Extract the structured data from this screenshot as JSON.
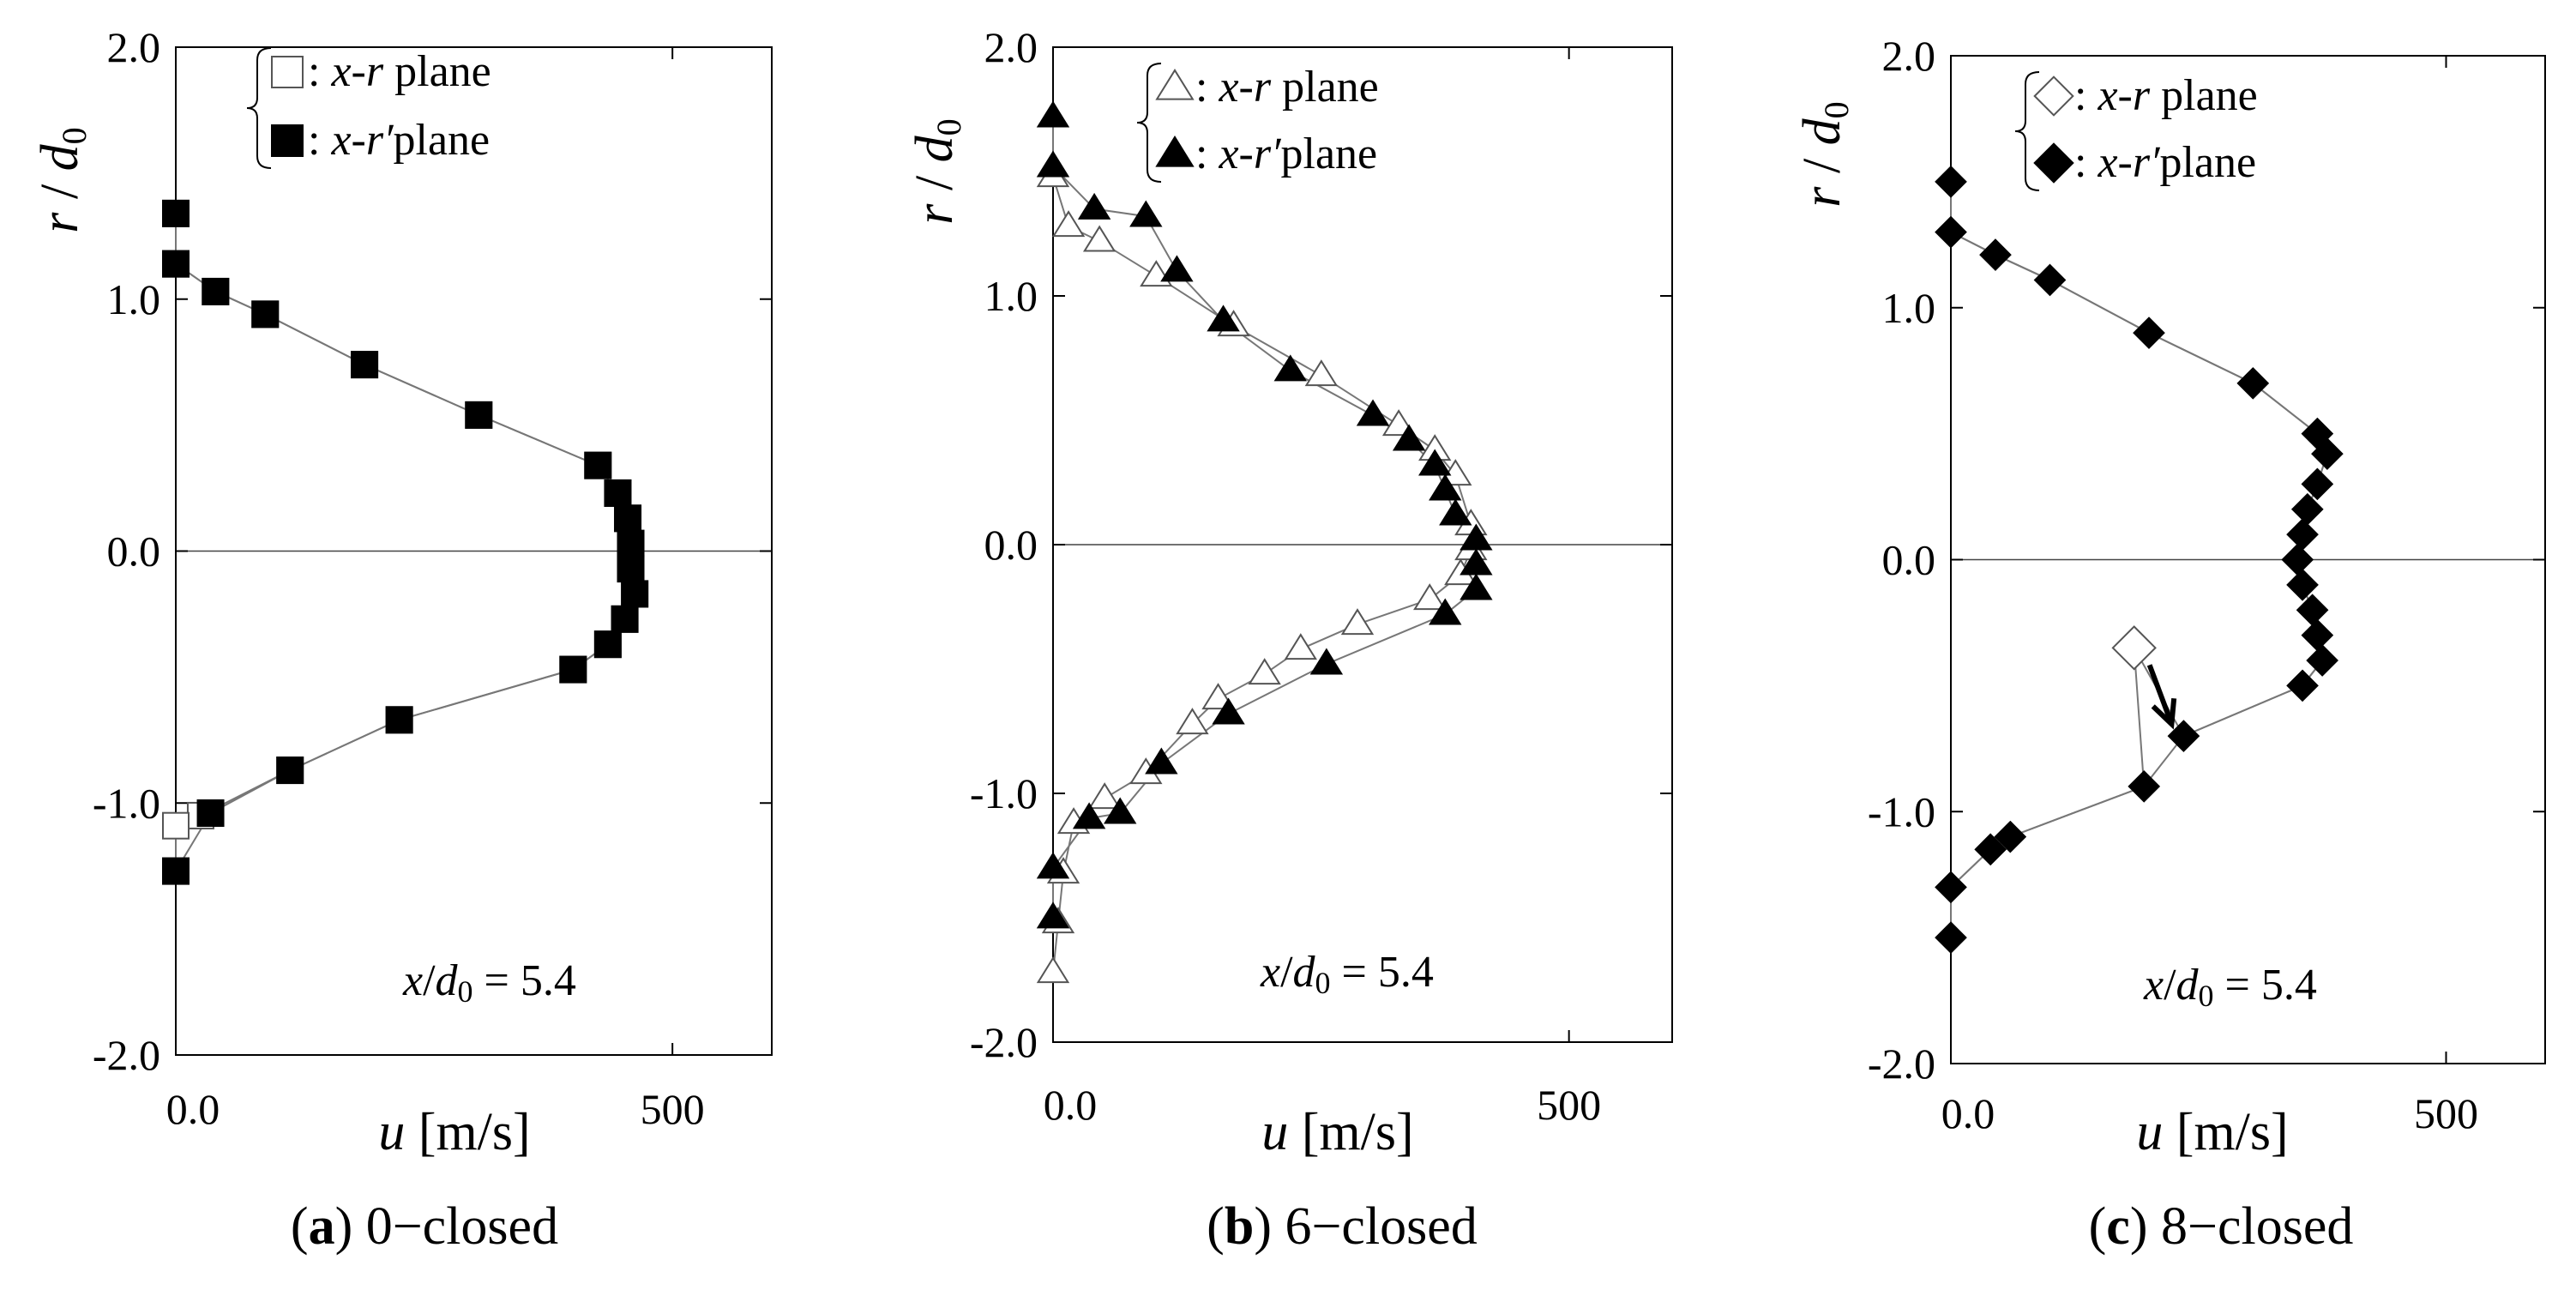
{
  "chart_data": [
    {
      "panel_id": "a",
      "caption_label": "a",
      "caption_text": " 0−closed",
      "type": "line",
      "xlabel_italic": "u",
      "xlabel_units": " [m/s]",
      "ylabel_r": "r",
      "ylabel_sep": " / ",
      "ylabel_d": "d",
      "ylabel_sub": "0",
      "xlim": [
        0,
        600
      ],
      "ylim": [
        -2,
        2
      ],
      "x_tick_labels": [
        {
          "value": 0,
          "label": "0.0"
        },
        {
          "value": 500,
          "label": "500"
        }
      ],
      "y_tick_labels": [
        {
          "value": 2,
          "label": "2.0"
        },
        {
          "value": 1,
          "label": "1.0"
        },
        {
          "value": 0,
          "label": "0.0"
        },
        {
          "value": -1,
          "label": "-1.0"
        },
        {
          "value": -2,
          "label": "-2.0"
        }
      ],
      "annotation": {
        "x": "x",
        "slash": "/",
        "d": "d",
        "sub": "0",
        "rest": " = 5.4"
      },
      "marker": "square",
      "legend": [
        {
          "prefix": ": ",
          "a": "x",
          "mid": "-",
          "b": "r",
          "suffix": " plane",
          "fill": "open"
        },
        {
          "prefix": ": ",
          "a": "x",
          "mid": "-",
          "b": "r′",
          "suffix": "plane",
          "fill": "filled"
        }
      ],
      "series": [
        {
          "name": "x-r plane",
          "fill": "open",
          "points": [
            [
              0,
              1.34
            ],
            [
              0,
              1.14
            ],
            [
              40,
              1.03
            ],
            [
              90,
              0.94
            ],
            [
              190,
              0.74
            ],
            [
              305,
              0.54
            ],
            [
              425,
              0.34
            ],
            [
              445,
              0.23
            ],
            [
              455,
              0.13
            ],
            [
              458,
              0.03
            ],
            [
              458,
              -0.07
            ],
            [
              462,
              -0.17
            ],
            [
              452,
              -0.27
            ],
            [
              435,
              -0.37
            ],
            [
              400,
              -0.47
            ],
            [
              225,
              -0.67
            ],
            [
              115,
              -0.87
            ],
            [
              25,
              -1.05
            ],
            [
              0,
              -1.09
            ],
            [
              0,
              -1.27
            ]
          ]
        },
        {
          "name": "x-r′plane",
          "fill": "filled",
          "points": [
            [
              0,
              1.34
            ],
            [
              0,
              1.14
            ],
            [
              40,
              1.03
            ],
            [
              90,
              0.94
            ],
            [
              190,
              0.74
            ],
            [
              305,
              0.54
            ],
            [
              425,
              0.34
            ],
            [
              445,
              0.23
            ],
            [
              455,
              0.13
            ],
            [
              458,
              0.03
            ],
            [
              458,
              -0.07
            ],
            [
              462,
              -0.17
            ],
            [
              452,
              -0.27
            ],
            [
              435,
              -0.37
            ],
            [
              400,
              -0.47
            ],
            [
              225,
              -0.67
            ],
            [
              115,
              -0.87
            ],
            [
              35,
              -1.04
            ],
            [
              0,
              -1.27
            ]
          ]
        }
      ]
    },
    {
      "panel_id": "b",
      "caption_label": "b",
      "caption_text": " 6−closed",
      "type": "line",
      "xlabel_italic": "u",
      "xlabel_units": " [m/s]",
      "ylabel_r": "r",
      "ylabel_sep": " / ",
      "ylabel_d": "d",
      "ylabel_sub": "0",
      "xlim": [
        0,
        600
      ],
      "ylim": [
        -2,
        2
      ],
      "x_tick_labels": [
        {
          "value": 0,
          "label": "0.0"
        },
        {
          "value": 500,
          "label": "500"
        }
      ],
      "y_tick_labels": [
        {
          "value": 2,
          "label": "2.0"
        },
        {
          "value": 1,
          "label": "1.0"
        },
        {
          "value": 0,
          "label": "0.0"
        },
        {
          "value": -1,
          "label": "-1.0"
        },
        {
          "value": -2,
          "label": "-2.0"
        }
      ],
      "annotation": {
        "x": "x",
        "slash": "/",
        "d": "d",
        "sub": "0",
        "rest": " = 5.4"
      },
      "marker": "triangle",
      "legend": [
        {
          "prefix": ": ",
          "a": "x",
          "mid": "-",
          "b": "r",
          "suffix": " plane",
          "fill": "open"
        },
        {
          "prefix": ": ",
          "a": "x",
          "mid": "-",
          "b": "r′",
          "suffix": "plane",
          "fill": "filled"
        }
      ],
      "series": [
        {
          "name": "x-r plane",
          "fill": "open",
          "points": [
            [
              0,
              1.48
            ],
            [
              15,
              1.28
            ],
            [
              45,
              1.22
            ],
            [
              100,
              1.08
            ],
            [
              175,
              0.88
            ],
            [
              260,
              0.68
            ],
            [
              335,
              0.48
            ],
            [
              370,
              0.38
            ],
            [
              390,
              0.28
            ],
            [
              405,
              0.08
            ],
            [
              405,
              -0.02
            ],
            [
              395,
              -0.12
            ],
            [
              365,
              -0.22
            ],
            [
              295,
              -0.32
            ],
            [
              240,
              -0.42
            ],
            [
              205,
              -0.52
            ],
            [
              160,
              -0.62
            ],
            [
              135,
              -0.72
            ],
            [
              90,
              -0.92
            ],
            [
              50,
              -1.02
            ],
            [
              20,
              -1.12
            ],
            [
              10,
              -1.32
            ],
            [
              5,
              -1.52
            ],
            [
              0,
              -1.72
            ]
          ]
        },
        {
          "name": "x-r′plane",
          "fill": "filled",
          "points": [
            [
              0,
              1.72
            ],
            [
              0,
              1.52
            ],
            [
              40,
              1.35
            ],
            [
              90,
              1.32
            ],
            [
              120,
              1.1
            ],
            [
              165,
              0.9
            ],
            [
              230,
              0.7
            ],
            [
              310,
              0.52
            ],
            [
              345,
              0.42
            ],
            [
              370,
              0.32
            ],
            [
              380,
              0.22
            ],
            [
              390,
              0.12
            ],
            [
              410,
              0.02
            ],
            [
              410,
              -0.08
            ],
            [
              410,
              -0.18
            ],
            [
              380,
              -0.28
            ],
            [
              265,
              -0.48
            ],
            [
              170,
              -0.68
            ],
            [
              105,
              -0.88
            ],
            [
              65,
              -1.08
            ],
            [
              35,
              -1.1
            ],
            [
              0,
              -1.3
            ],
            [
              0,
              -1.5
            ]
          ]
        }
      ]
    },
    {
      "panel_id": "c",
      "caption_label": "c",
      "caption_text": " 8−closed",
      "type": "line",
      "xlabel_italic": "u",
      "xlabel_units": " [m/s]",
      "ylabel_r": "r",
      "ylabel_sep": " / ",
      "ylabel_d": "d",
      "ylabel_sub": "0",
      "xlim": [
        0,
        600
      ],
      "ylim": [
        -2,
        2
      ],
      "x_tick_labels": [
        {
          "value": 0,
          "label": "0.0"
        },
        {
          "value": 500,
          "label": "500"
        }
      ],
      "y_tick_labels": [
        {
          "value": 2,
          "label": "2.0"
        },
        {
          "value": 1,
          "label": "1.0"
        },
        {
          "value": 0,
          "label": "0.0"
        },
        {
          "value": -1,
          "label": "-1.0"
        },
        {
          "value": -2,
          "label": "-2.0"
        }
      ],
      "annotation": {
        "x": "x",
        "slash": "/",
        "d": "d",
        "sub": "0",
        "rest": " = 5.4"
      },
      "marker": "diamond",
      "legend": [
        {
          "prefix": ": ",
          "a": "x",
          "mid": "-",
          "b": "r",
          "suffix": " plane",
          "fill": "open"
        },
        {
          "prefix": ": ",
          "a": "x",
          "mid": "-",
          "b": "r′",
          "suffix": "plane",
          "fill": "filled"
        }
      ],
      "series": [
        {
          "name": "x-r plane",
          "fill": "open",
          "points": [
            [
              0,
              1.5
            ],
            [
              0,
              1.3
            ],
            [
              45,
              1.21
            ],
            [
              100,
              1.11
            ],
            [
              200,
              0.9
            ],
            [
              305,
              0.7
            ],
            [
              370,
              0.5
            ],
            [
              380,
              0.42
            ],
            [
              370,
              0.3
            ],
            [
              360,
              0.2
            ],
            [
              355,
              0.1
            ],
            [
              350,
              0.0
            ],
            [
              355,
              -0.1
            ],
            [
              365,
              -0.2
            ],
            [
              370,
              -0.3
            ],
            [
              375,
              -0.4
            ],
            [
              355,
              -0.5
            ],
            [
              235,
              -0.7
            ],
            [
              185,
              -0.35
            ],
            [
              195,
              -0.9
            ],
            [
              60,
              -1.1
            ],
            [
              40,
              -1.15
            ],
            [
              0,
              -1.3
            ],
            [
              0,
              -1.5
            ]
          ],
          "highlight": {
            "point": [
              185,
              -0.35
            ],
            "target": [
              235,
              -0.7
            ]
          }
        },
        {
          "name": "x-r′plane",
          "fill": "filled",
          "points": [
            [
              0,
              1.5
            ],
            [
              0,
              1.3
            ],
            [
              45,
              1.21
            ],
            [
              100,
              1.11
            ],
            [
              200,
              0.9
            ],
            [
              305,
              0.7
            ],
            [
              370,
              0.5
            ],
            [
              380,
              0.42
            ],
            [
              370,
              0.3
            ],
            [
              360,
              0.2
            ],
            [
              355,
              0.1
            ],
            [
              350,
              0.0
            ],
            [
              355,
              -0.1
            ],
            [
              365,
              -0.2
            ],
            [
              370,
              -0.3
            ],
            [
              375,
              -0.4
            ],
            [
              355,
              -0.5
            ],
            [
              235,
              -0.7
            ],
            [
              195,
              -0.9
            ],
            [
              60,
              -1.1
            ],
            [
              40,
              -1.15
            ],
            [
              0,
              -1.3
            ],
            [
              0,
              -1.5
            ]
          ]
        }
      ]
    }
  ]
}
